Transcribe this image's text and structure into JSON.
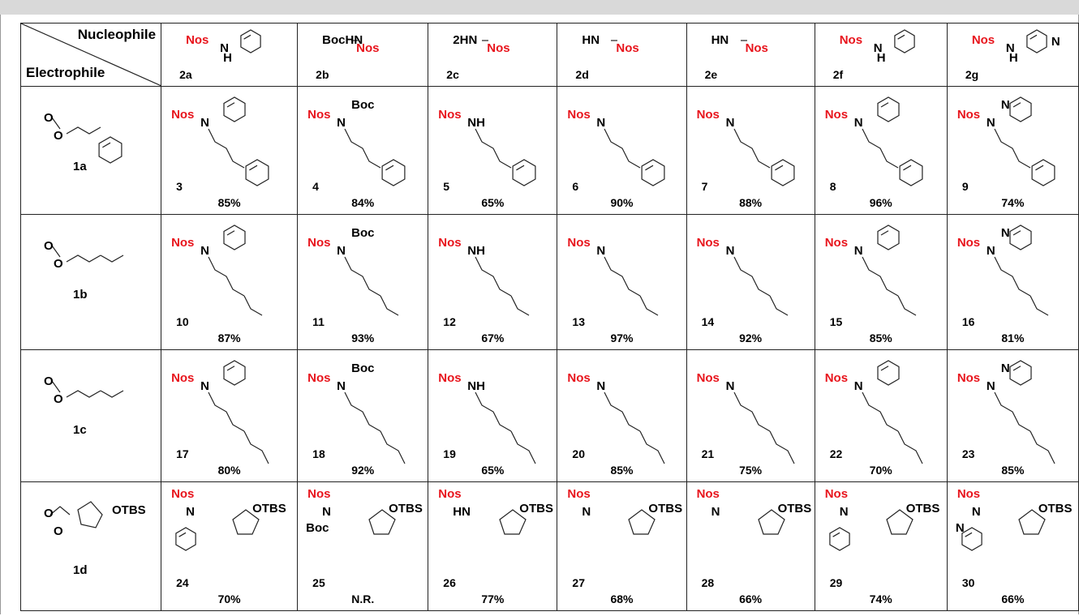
{
  "header": {
    "nucleophile": "Nucleophile",
    "electrophile": "Electrophile"
  },
  "nucleophiles": [
    {
      "id": "2a",
      "fragments": [
        {
          "text": "Nos",
          "color": "#e8141c"
        },
        {
          "text": "N"
        },
        {
          "text": "H"
        }
      ]
    },
    {
      "id": "2b",
      "fragments": [
        {
          "text": "BocHN"
        },
        {
          "text": "Nos",
          "color": "#e8141c"
        }
      ]
    },
    {
      "id": "2c",
      "fragments": [
        {
          "text": "2HN"
        },
        {
          "text": "Nos",
          "color": "#e8141c"
        }
      ]
    },
    {
      "id": "2d",
      "fragments": [
        {
          "text": "HN"
        },
        {
          "text": "Nos",
          "color": "#e8141c"
        }
      ]
    },
    {
      "id": "2e",
      "fragments": [
        {
          "text": "HN"
        },
        {
          "text": "Nos",
          "color": "#e8141c"
        }
      ]
    },
    {
      "id": "2f",
      "fragments": [
        {
          "text": "Nos",
          "color": "#e8141c"
        },
        {
          "text": "N"
        },
        {
          "text": "H"
        }
      ]
    },
    {
      "id": "2g",
      "fragments": [
        {
          "text": "Nos",
          "color": "#e8141c"
        },
        {
          "text": "N"
        },
        {
          "text": "H"
        },
        {
          "text": "N"
        }
      ]
    }
  ],
  "rows": [
    {
      "electrophile": {
        "id": "1a",
        "fragments": [
          {
            "text": "O"
          },
          {
            "text": "O"
          }
        ]
      },
      "products": [
        {
          "number": "3",
          "yield": "85%",
          "fragments": [
            {
              "text": "Nos",
              "color": "#e8141c"
            },
            {
              "text": "N"
            }
          ]
        },
        {
          "number": "4",
          "yield": "84%",
          "fragments": [
            {
              "text": "Nos",
              "color": "#e8141c"
            },
            {
              "text": "N"
            },
            {
              "text": "Boc"
            }
          ]
        },
        {
          "number": "5",
          "yield": "65%",
          "fragments": [
            {
              "text": "Nos",
              "color": "#e8141c"
            },
            {
              "text": "NH"
            }
          ]
        },
        {
          "number": "6",
          "yield": "90%",
          "fragments": [
            {
              "text": "Nos",
              "color": "#e8141c"
            },
            {
              "text": "N"
            }
          ]
        },
        {
          "number": "7",
          "yield": "88%",
          "fragments": [
            {
              "text": "Nos",
              "color": "#e8141c"
            },
            {
              "text": "N"
            }
          ]
        },
        {
          "number": "8",
          "yield": "96%",
          "fragments": [
            {
              "text": "Nos",
              "color": "#e8141c"
            },
            {
              "text": "N"
            }
          ]
        },
        {
          "number": "9",
          "yield": "74%",
          "fragments": [
            {
              "text": "Nos",
              "color": "#e8141c"
            },
            {
              "text": "N"
            },
            {
              "text": "N"
            }
          ]
        }
      ]
    },
    {
      "electrophile": {
        "id": "1b",
        "fragments": [
          {
            "text": "O"
          },
          {
            "text": "O"
          }
        ]
      },
      "products": [
        {
          "number": "10",
          "yield": "87%",
          "fragments": [
            {
              "text": "Nos",
              "color": "#e8141c"
            },
            {
              "text": "N"
            }
          ]
        },
        {
          "number": "11",
          "yield": "93%",
          "fragments": [
            {
              "text": "Nos",
              "color": "#e8141c"
            },
            {
              "text": "N"
            },
            {
              "text": "Boc"
            }
          ]
        },
        {
          "number": "12",
          "yield": "67%",
          "fragments": [
            {
              "text": "Nos",
              "color": "#e8141c"
            },
            {
              "text": "NH"
            }
          ]
        },
        {
          "number": "13",
          "yield": "97%",
          "fragments": [
            {
              "text": "Nos",
              "color": "#e8141c"
            },
            {
              "text": "N"
            }
          ]
        },
        {
          "number": "14",
          "yield": "92%",
          "fragments": [
            {
              "text": "Nos",
              "color": "#e8141c"
            },
            {
              "text": "N"
            }
          ]
        },
        {
          "number": "15",
          "yield": "85%",
          "fragments": [
            {
              "text": "Nos",
              "color": "#e8141c"
            },
            {
              "text": "N"
            }
          ]
        },
        {
          "number": "16",
          "yield": "81%",
          "fragments": [
            {
              "text": "Nos",
              "color": "#e8141c"
            },
            {
              "text": "N"
            },
            {
              "text": "N"
            }
          ]
        }
      ]
    },
    {
      "electrophile": {
        "id": "1c",
        "fragments": [
          {
            "text": "O"
          },
          {
            "text": "O"
          }
        ]
      },
      "products": [
        {
          "number": "17",
          "yield": "80%",
          "fragments": [
            {
              "text": "Nos",
              "color": "#e8141c"
            },
            {
              "text": "N"
            }
          ]
        },
        {
          "number": "18",
          "yield": "92%",
          "fragments": [
            {
              "text": "Nos",
              "color": "#e8141c"
            },
            {
              "text": "N"
            },
            {
              "text": "Boc"
            }
          ]
        },
        {
          "number": "19",
          "yield": "65%",
          "fragments": [
            {
              "text": "Nos",
              "color": "#e8141c"
            },
            {
              "text": "NH"
            }
          ]
        },
        {
          "number": "20",
          "yield": "85%",
          "fragments": [
            {
              "text": "Nos",
              "color": "#e8141c"
            },
            {
              "text": "N"
            }
          ]
        },
        {
          "number": "21",
          "yield": "75%",
          "fragments": [
            {
              "text": "Nos",
              "color": "#e8141c"
            },
            {
              "text": "N"
            }
          ]
        },
        {
          "number": "22",
          "yield": "70%",
          "fragments": [
            {
              "text": "Nos",
              "color": "#e8141c"
            },
            {
              "text": "N"
            }
          ]
        },
        {
          "number": "23",
          "yield": "85%",
          "fragments": [
            {
              "text": "Nos",
              "color": "#e8141c"
            },
            {
              "text": "N"
            },
            {
              "text": "N"
            }
          ]
        }
      ]
    },
    {
      "electrophile": {
        "id": "1d",
        "fragments": [
          {
            "text": "O"
          },
          {
            "text": "O"
          },
          {
            "text": "OTBS"
          }
        ]
      },
      "products": [
        {
          "number": "24",
          "yield": "70%",
          "fragments": [
            {
              "text": "Nos",
              "color": "#e8141c"
            },
            {
              "text": "N"
            },
            {
              "text": "OTBS"
            }
          ]
        },
        {
          "number": "25",
          "yield": "N.R.",
          "fragments": [
            {
              "text": "Nos",
              "color": "#e8141c"
            },
            {
              "text": "N"
            },
            {
              "text": "OTBS"
            },
            {
              "text": "Boc"
            }
          ]
        },
        {
          "number": "26",
          "yield": "77%",
          "fragments": [
            {
              "text": "Nos",
              "color": "#e8141c"
            },
            {
              "text": "HN"
            },
            {
              "text": "OTBS"
            }
          ]
        },
        {
          "number": "27",
          "yield": "68%",
          "fragments": [
            {
              "text": "Nos",
              "color": "#e8141c"
            },
            {
              "text": "N"
            },
            {
              "text": "OTBS"
            }
          ]
        },
        {
          "number": "28",
          "yield": "66%",
          "fragments": [
            {
              "text": "Nos",
              "color": "#e8141c"
            },
            {
              "text": "N"
            },
            {
              "text": "OTBS"
            }
          ]
        },
        {
          "number": "29",
          "yield": "74%",
          "fragments": [
            {
              "text": "Nos",
              "color": "#e8141c"
            },
            {
              "text": "N"
            },
            {
              "text": "OTBS"
            }
          ]
        },
        {
          "number": "30",
          "yield": "66%",
          "fragments": [
            {
              "text": "Nos",
              "color": "#e8141c"
            },
            {
              "text": "N"
            },
            {
              "text": "OTBS"
            },
            {
              "text": "N"
            }
          ]
        }
      ]
    }
  ]
}
